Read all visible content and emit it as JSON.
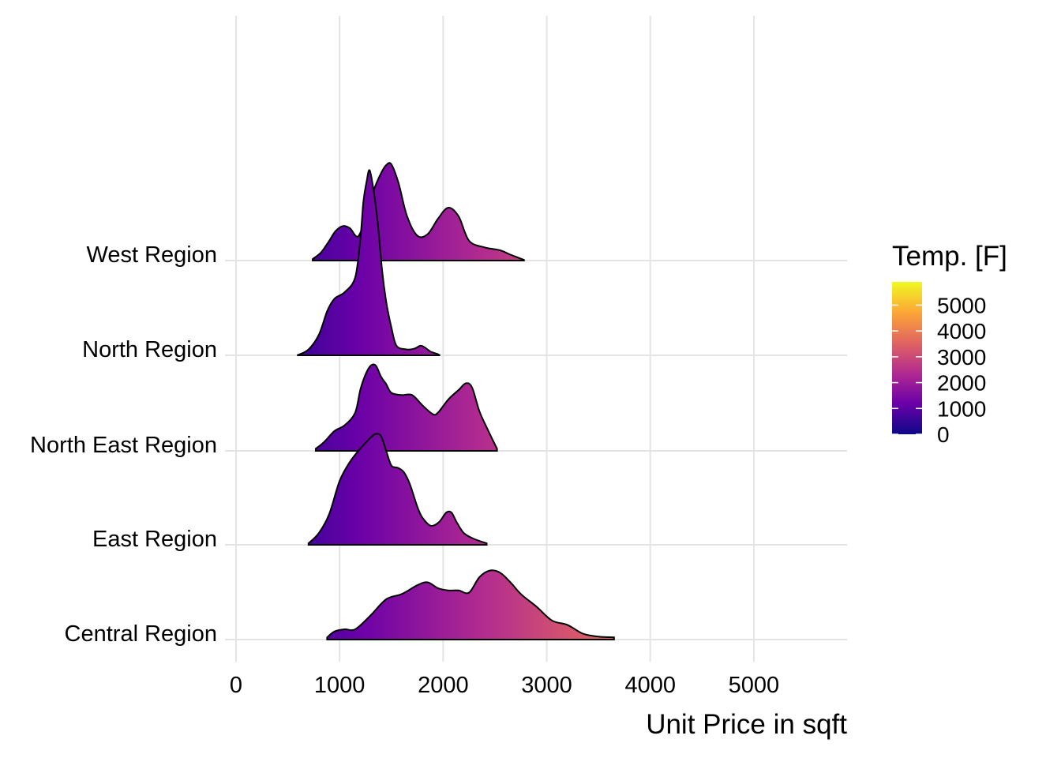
{
  "chart_data": {
    "type": "ridgeline",
    "title": "",
    "xlabel": "Unit Price in sqft",
    "ylabel": "",
    "xlim": [
      0,
      5900
    ],
    "x_ticks": [
      0,
      1000,
      2000,
      3000,
      4000,
      5000
    ],
    "x_tick_labels": [
      "0",
      "1000",
      "2000",
      "3000",
      "4000",
      "5000"
    ],
    "grid": true,
    "legend": {
      "title": "Temp. [F]",
      "position": "right",
      "type": "colorbar",
      "range": [
        0,
        5900
      ],
      "ticks": [
        0,
        1000,
        2000,
        3000,
        4000,
        5000
      ],
      "tick_labels": [
        "0",
        "1000",
        "2000",
        "3000",
        "4000",
        "5000"
      ],
      "palette": [
        "#0d0887",
        "#6a00a8",
        "#b12a90",
        "#e16462",
        "#fca636",
        "#f0f921"
      ]
    },
    "categories": [
      "Central Region",
      "East Region",
      "North East Region",
      "North Region",
      "West Region"
    ],
    "series": [
      {
        "name": "Central Region",
        "x": [
          880,
          950,
          1050,
          1150,
          1300,
          1450,
          1600,
          1750,
          1850,
          1950,
          2050,
          2150,
          2250,
          2350,
          2450,
          2550,
          2650,
          2750,
          2900,
          3050,
          3200,
          3350,
          3500,
          3650
        ],
        "density": [
          0.03,
          0.11,
          0.14,
          0.14,
          0.33,
          0.55,
          0.62,
          0.74,
          0.78,
          0.7,
          0.67,
          0.67,
          0.64,
          0.85,
          0.94,
          0.91,
          0.78,
          0.62,
          0.45,
          0.26,
          0.2,
          0.08,
          0.04,
          0.03
        ]
      },
      {
        "name": "East Region",
        "x": [
          700,
          800,
          900,
          1000,
          1100,
          1200,
          1300,
          1350,
          1400,
          1450,
          1500,
          1560,
          1620,
          1680,
          1750,
          1800,
          1880,
          1960,
          2030,
          2080,
          2130,
          2200,
          2300,
          2420
        ],
        "density": [
          0.02,
          0.16,
          0.42,
          0.87,
          1.13,
          1.31,
          1.46,
          1.51,
          1.48,
          1.28,
          1.08,
          1.05,
          0.99,
          0.82,
          0.52,
          0.37,
          0.26,
          0.31,
          0.44,
          0.44,
          0.31,
          0.16,
          0.08,
          0.02
        ]
      },
      {
        "name": "North East Region",
        "x": [
          770,
          850,
          950,
          1050,
          1150,
          1200,
          1250,
          1300,
          1350,
          1400,
          1450,
          1500,
          1600,
          1700,
          1800,
          1900,
          1950,
          2050,
          2150,
          2220,
          2280,
          2350,
          2430,
          2520
        ],
        "density": [
          0.03,
          0.12,
          0.27,
          0.35,
          0.52,
          0.83,
          1.04,
          1.16,
          1.16,
          1.01,
          0.91,
          0.79,
          0.76,
          0.76,
          0.62,
          0.5,
          0.52,
          0.7,
          0.83,
          0.92,
          0.86,
          0.54,
          0.29,
          0.03
        ]
      },
      {
        "name": "North Region",
        "x": [
          590,
          700,
          800,
          880,
          950,
          1050,
          1150,
          1200,
          1230,
          1260,
          1290,
          1330,
          1370,
          1410,
          1450,
          1500,
          1550,
          1650,
          1720,
          1780,
          1820,
          1880,
          1940,
          1970
        ],
        "density": [
          0.0,
          0.08,
          0.28,
          0.6,
          0.77,
          0.86,
          1.06,
          1.58,
          2.1,
          2.36,
          2.52,
          2.23,
          1.78,
          1.16,
          0.73,
          0.38,
          0.13,
          0.08,
          0.09,
          0.13,
          0.11,
          0.05,
          0.02,
          0.0
        ]
      },
      {
        "name": "West Region",
        "x": [
          740,
          820,
          900,
          960,
          1030,
          1100,
          1180,
          1260,
          1330,
          1400,
          1450,
          1500,
          1570,
          1650,
          1750,
          1850,
          1950,
          2050,
          2150,
          2250,
          2400,
          2550,
          2650,
          2780
        ],
        "density": [
          0.02,
          0.11,
          0.27,
          0.4,
          0.47,
          0.44,
          0.33,
          0.63,
          0.96,
          1.19,
          1.3,
          1.31,
          1.05,
          0.61,
          0.34,
          0.36,
          0.57,
          0.72,
          0.6,
          0.27,
          0.18,
          0.14,
          0.08,
          0.01
        ]
      }
    ]
  }
}
